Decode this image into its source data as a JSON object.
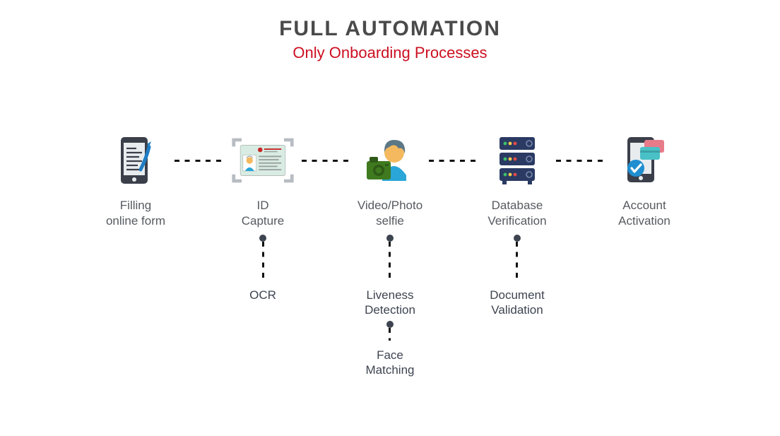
{
  "type": "flowchart",
  "background_color": "#ffffff",
  "title": {
    "text": "FULL AUTOMATION",
    "color": "#4a4a4a",
    "fontsize": 30
  },
  "subtitle": {
    "text": "Only Onboarding Processes",
    "color": "#cc0f21",
    "fontsize": 22
  },
  "step_label_style": {
    "color": "#565a60",
    "fontsize": 17
  },
  "sub_label_style": {
    "color": "#3d4450",
    "fontsize": 17
  },
  "connector_style": {
    "color": "#111111",
    "dash_width": 3,
    "dash_gap": 7,
    "horizontal_length": 70,
    "vertical_length_short": 55,
    "vertical_length_gap": 18,
    "dot_color": "#3d4450"
  },
  "steps": [
    {
      "id": "filling-form",
      "label": "Filling\nonline form",
      "icon": "phone-form-icon",
      "sub": []
    },
    {
      "id": "id-capture",
      "label": "ID\nCapture",
      "icon": "id-card-icon",
      "sub": [
        "OCR"
      ]
    },
    {
      "id": "selfie",
      "label": "Video/Photo\nselfie",
      "icon": "selfie-camera-icon",
      "sub": [
        "Liveness\nDetection",
        "Face\nMatching"
      ]
    },
    {
      "id": "db-verify",
      "label": "Database\nVerification",
      "icon": "server-stack-icon",
      "sub": [
        "Document\nValidation"
      ]
    },
    {
      "id": "activation",
      "label": "Account\nActivation",
      "icon": "phone-check-icon",
      "sub": []
    }
  ],
  "icon_colors": {
    "phone_dark": "#3a3f4a",
    "phone_screen": "#e8ecef",
    "pen_blue": "#1f7dc4",
    "bracket_grey": "#b7bcc2",
    "id_bg": "#d9ece3",
    "id_accent": "#c62828",
    "id_text": "#9aa09f",
    "face_skin": "#f4b95e",
    "face_hair": "#5c7785",
    "shirt_blue": "#2aa6d8",
    "camera_green": "#3f7a1f",
    "camera_green_dark": "#2f5a17",
    "server_dark": "#2a3a63",
    "server_led_g": "#3bbf6a",
    "server_led_y": "#f2c94c",
    "server_led_r": "#e24b4b",
    "card_pink": "#e77b8a",
    "card_teal": "#49c1c7",
    "check_blue": "#1f8ed0",
    "check_white": "#ffffff"
  }
}
